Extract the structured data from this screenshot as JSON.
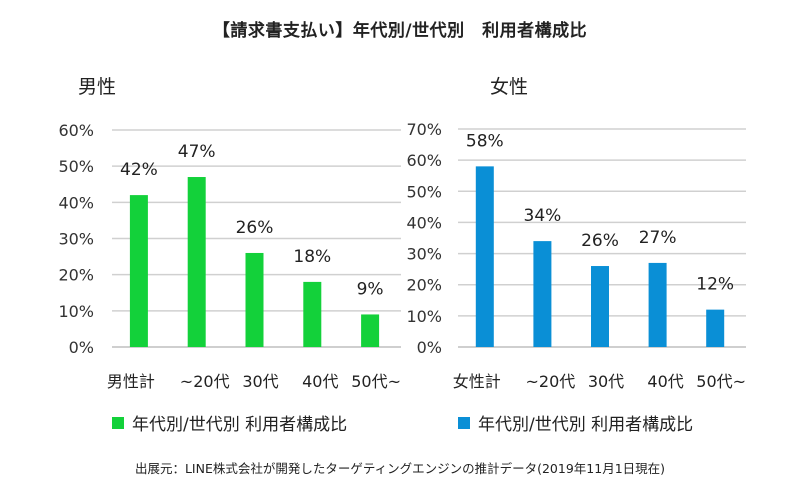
{
  "title": "【請求書支払い】年代別/世代別　利用者構成比",
  "source": "出展元：LINE株式会社が開発したターゲティングエンジンの推計データ(2019年11月1日現在)",
  "chart_data": [
    {
      "type": "bar",
      "title": "男性",
      "categories": [
        "男性計",
        "~20代",
        "30代",
        "40代",
        "50代~"
      ],
      "values": [
        42,
        47,
        26,
        18,
        9
      ],
      "data_labels": [
        "42%",
        "47%",
        "26%",
        "18%",
        "9%"
      ],
      "ylim": [
        0,
        60
      ],
      "yticks": [
        "0%",
        "10%",
        "20%",
        "30%",
        "40%",
        "50%",
        "60%"
      ],
      "ytick_values": [
        0,
        10,
        20,
        30,
        40,
        50,
        60
      ],
      "xlabel": "",
      "ylabel": "",
      "grid": true,
      "legend": {
        "label": "年代別/世代別 利用者構成比",
        "position": "bottom-left"
      },
      "color": "#13d13a"
    },
    {
      "type": "bar",
      "title": "女性",
      "categories": [
        "女性計",
        "~20代",
        "30代",
        "40代",
        "50代~"
      ],
      "values": [
        58,
        34,
        26,
        27,
        12
      ],
      "data_labels": [
        "58%",
        "34%",
        "26%",
        "27%",
        "12%"
      ],
      "ylim": [
        0,
        70
      ],
      "yticks": [
        "0%",
        "10%",
        "20%",
        "30%",
        "40%",
        "50%",
        "60%",
        "70%"
      ],
      "ytick_values": [
        0,
        10,
        20,
        30,
        40,
        50,
        60,
        70
      ],
      "xlabel": "",
      "ylabel": "",
      "grid": true,
      "legend": {
        "label": "年代別/世代別 利用者構成比",
        "position": "bottom-left"
      },
      "color": "#0a8fd6"
    }
  ]
}
